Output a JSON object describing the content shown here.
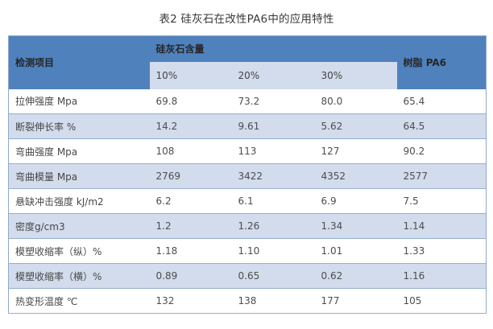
{
  "page": {
    "title": "表2 硅灰石在改性PA6中的应用特性"
  },
  "table": {
    "header": {
      "col_item": "检测项目",
      "col_group": "硅灰石含量",
      "col_resin": "树脂 PA6",
      "subcols": [
        "10%",
        "20%",
        "30%"
      ]
    },
    "rows": [
      {
        "label": "拉伸强度 Mpa",
        "values": [
          "69.8",
          "73.2",
          "80.0",
          "65.4"
        ]
      },
      {
        "label": "断裂伸长率 %",
        "values": [
          "14.2",
          "9.61",
          "5.62",
          "64.5"
        ]
      },
      {
        "label": "弯曲强度 Mpa",
        "values": [
          "108",
          "113",
          "127",
          "90.2"
        ]
      },
      {
        "label": "弯曲模量 Mpa",
        "values": [
          "2769",
          "3422",
          "4352",
          "2577"
        ]
      },
      {
        "label": "悬缺冲击强度 kJ/m2",
        "values": [
          "6.2",
          "6.1",
          "6.9",
          "7.5"
        ]
      },
      {
        "label": "密度g/cm3",
        "values": [
          "1.2",
          "1.26",
          "1.34",
          "1.14"
        ]
      },
      {
        "label": "模塑收缩率（纵）%",
        "values": [
          "1.18",
          "1.10",
          "1.01",
          "1.33"
        ]
      },
      {
        "label": "模塑收缩率（横）%",
        "values": [
          "0.89",
          "0.65",
          "0.62",
          "1.16"
        ]
      },
      {
        "label": "热变形温度 ℃",
        "values": [
          "132",
          "138",
          "177",
          "105"
        ]
      }
    ],
    "colors": {
      "header_bg": "#4f81bd",
      "subheader_bg": "#d2dcec",
      "band_row_bg": "#d2dcec",
      "border": "#95aecd"
    }
  }
}
